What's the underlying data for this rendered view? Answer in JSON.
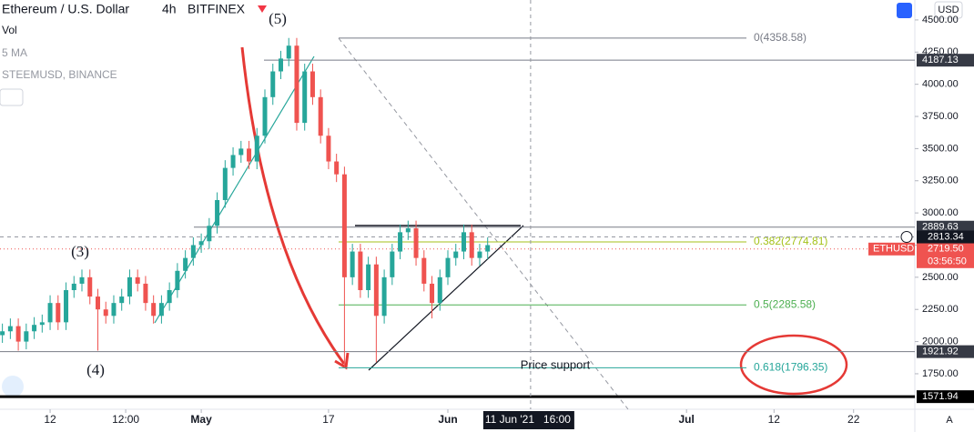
{
  "chart_data": {
    "type": "candlestick",
    "title": "Ethereum / U.S. Dollar",
    "interval": "4h",
    "exchange": "BITFINEX",
    "indicators": [
      "Vol",
      "5 MA",
      "STEEMUSD, BINANCE"
    ],
    "currency": "USD",
    "up_color": "#26a69a",
    "down_color": "#ef5350",
    "x": [
      5,
      6,
      7,
      8,
      9,
      10,
      11,
      12,
      13,
      14,
      15,
      16,
      17,
      18,
      19,
      20,
      21,
      22,
      23,
      24,
      25,
      26,
      27,
      28,
      29,
      30,
      31,
      32,
      33,
      34,
      35,
      36,
      37,
      38,
      39,
      40,
      41,
      42,
      43,
      44,
      45,
      46,
      47,
      48,
      49,
      50,
      51,
      52,
      53,
      54,
      55,
      56,
      57,
      58,
      59,
      60,
      61,
      62,
      63,
      64,
      65,
      66
    ],
    "open": [
      2050,
      2080,
      2120,
      2000,
      2080,
      2130,
      2150,
      2300,
      2150,
      2400,
      2450,
      2500,
      2350,
      2250,
      2200,
      2300,
      2350,
      2500,
      2450,
      2300,
      2200,
      2300,
      2400,
      2550,
      2650,
      2750,
      2780,
      2900,
      3100,
      3350,
      3450,
      3500,
      3400,
      3600,
      3900,
      4100,
      4200,
      4300,
      3700,
      4100,
      3900,
      3600,
      3400,
      3300,
      2500,
      2700,
      2400,
      2600,
      2200,
      2500,
      2700,
      2850,
      2880,
      2650,
      2450,
      2300,
      2500,
      2650,
      2700,
      2850,
      2650,
      2700
    ],
    "high": [
      2140,
      2180,
      2180,
      2140,
      2190,
      2210,
      2360,
      2360,
      2460,
      2510,
      2560,
      2560,
      2410,
      2310,
      2360,
      2410,
      2560,
      2560,
      2510,
      2360,
      2360,
      2460,
      2610,
      2710,
      2810,
      2840,
      2960,
      3160,
      3410,
      3510,
      3560,
      3560,
      3660,
      3960,
      4160,
      4260,
      4360,
      4360,
      4160,
      4160,
      3960,
      3660,
      3460,
      3360,
      2760,
      2760,
      2660,
      2660,
      2560,
      2760,
      2910,
      2940,
      2940,
      2710,
      2510,
      2560,
      2710,
      2760,
      2910,
      2910,
      2760,
      2810
    ],
    "low": [
      1990,
      2020,
      1930,
      1940,
      2020,
      2070,
      2090,
      2090,
      2090,
      2340,
      2390,
      2290,
      1930,
      2140,
      2140,
      2240,
      2290,
      2390,
      2240,
      2140,
      2140,
      2240,
      2340,
      2490,
      2590,
      2690,
      2720,
      2840,
      3040,
      3290,
      3390,
      3340,
      3340,
      3540,
      3840,
      4040,
      4140,
      3640,
      3640,
      3840,
      3540,
      3340,
      3240,
      1800,
      2440,
      2340,
      2340,
      1840,
      2140,
      2440,
      2640,
      2790,
      2590,
      2390,
      2180,
      2240,
      2440,
      2590,
      2640,
      2590,
      2590,
      2640
    ],
    "close": [
      2080,
      2120,
      2000,
      2080,
      2130,
      2150,
      2300,
      2150,
      2400,
      2450,
      2500,
      2350,
      2250,
      2200,
      2300,
      2350,
      2500,
      2450,
      2300,
      2200,
      2300,
      2400,
      2550,
      2650,
      2750,
      2780,
      2900,
      3100,
      3350,
      3450,
      3500,
      3400,
      3600,
      3900,
      4100,
      4200,
      4300,
      3700,
      4100,
      3900,
      3600,
      3400,
      3300,
      2500,
      2700,
      2400,
      2600,
      2200,
      2500,
      2700,
      2850,
      2880,
      2650,
      2450,
      2300,
      2500,
      2650,
      2700,
      2850,
      2650,
      2700,
      2750
    ],
    "xlim": [
      4.7,
      119.7
    ],
    "xticks": [
      {
        "value": 11,
        "label": "12"
      },
      {
        "value": 20.5,
        "label": "12:00"
      },
      {
        "value": 30,
        "label": "May"
      },
      {
        "value": 46,
        "label": "17"
      },
      {
        "value": 61,
        "label": "Jun"
      },
      {
        "value": 91,
        "label": "Jul"
      },
      {
        "value": 102,
        "label": "12"
      },
      {
        "value": 112,
        "label": "22"
      }
    ],
    "ylim": [
      1474,
      4655
    ],
    "yticks": [
      {
        "value": 4500,
        "label": "4500.00"
      },
      {
        "value": 4250,
        "label": "4250.00"
      },
      {
        "value": 4000,
        "label": "4000.00"
      },
      {
        "value": 3750,
        "label": "3750.00"
      },
      {
        "value": 3500,
        "label": "3500.00"
      },
      {
        "value": 3250,
        "label": "3250.00"
      },
      {
        "value": 3000,
        "label": "3000.00"
      },
      {
        "value": 2750,
        "label": "2750.00"
      },
      {
        "value": 2500,
        "label": "2500.00"
      },
      {
        "value": 2250,
        "label": "2250.00"
      },
      {
        "value": 2000,
        "label": "2000.00"
      },
      {
        "value": 1750,
        "label": "1750.00"
      }
    ],
    "levels": [
      4187.13,
      2889.63,
      1921.92,
      1571.94
    ],
    "last_price": {
      "value": 2719.5,
      "label": "2719.50",
      "symbol": "ETHUSD",
      "countdown": "03:56:50"
    },
    "crosshair": {
      "x": 71.4,
      "date": "11 Jun '21",
      "time": "16:00",
      "price": 2813.34
    },
    "fib": [
      {
        "value": 4358.58,
        "label": "0(4358.58)",
        "color": "#787b86"
      },
      {
        "value": 2774.81,
        "label": "0.382(2774.81)",
        "color": "#a5c21a"
      },
      {
        "value": 2285.58,
        "label": "0.5(2285.58)",
        "color": "#4caf50"
      },
      {
        "value": 1796.35,
        "label": "0.618(1796.35)",
        "color": "#26a69a"
      }
    ],
    "annotations": [
      "(5)",
      "(3)",
      "(4)",
      "Price support"
    ],
    "scale_mode": "A"
  }
}
